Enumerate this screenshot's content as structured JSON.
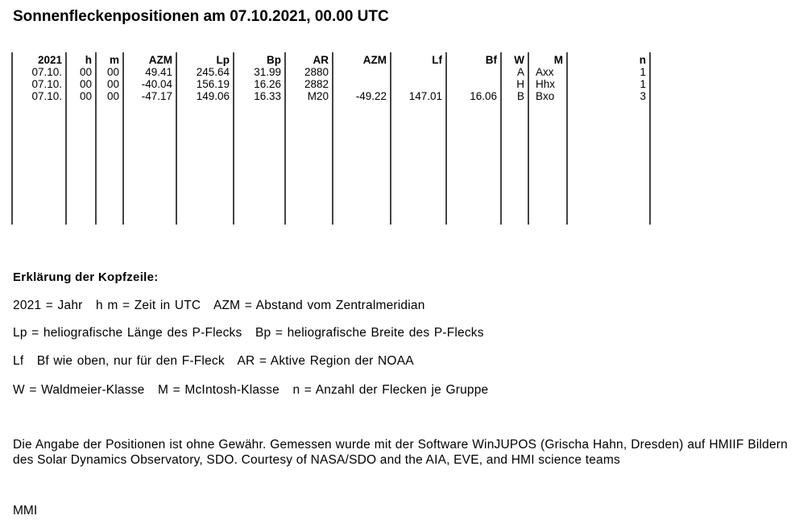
{
  "title": "Sonnenfleckenpositionen am 07.10.2021, 00.00 UTC",
  "table": {
    "headers": [
      "2021",
      "h",
      "m",
      "AZM",
      "Lp",
      "Bp",
      "AR",
      "AZM",
      "Lf",
      "Bf",
      "W",
      "M",
      "n"
    ],
    "rows": [
      [
        "07.10.",
        "00",
        "00",
        "49.41",
        "245.64",
        "31.99",
        "2880",
        "",
        "",
        "",
        "A",
        "Axx",
        "1"
      ],
      [
        "07.10.",
        "00",
        "00",
        "-40.04",
        "156.19",
        "16.26",
        "2882",
        "",
        "",
        "",
        "H",
        "Hhx",
        "1"
      ],
      [
        "07.10.",
        "00",
        "00",
        "-47.17",
        "149.06",
        "16.33",
        "M20",
        "-49.22",
        "147.01",
        "16.06",
        "B",
        "Bxo",
        "3"
      ]
    ]
  },
  "explanation": {
    "heading": "Erklärung der Kopfzeile:",
    "lines": [
      "2021 = Jahr   h m = Zeit in UTC   AZM = Abstand vom Zentralmeridian",
      "Lp = heliografische Länge des P-Flecks   Bp = heliografische Breite des P-Flecks",
      "Lf   Bf wie oben, nur für den F-Fleck   AR = Aktive Region der NOAA",
      "W = Waldmeier-Klasse   M = McIntosh-Klasse   n = Anzahl der Flecken je Gruppe"
    ]
  },
  "disclaimer": "Die Angabe der Positionen ist ohne Gewähr. Gemessen wurde mit der Software WinJUPOS (Grischa Hahn, Dresden) auf HMIIF Bildern des Solar Dynamics Observatory, SDO. Courtesy of NASA/SDO and the AIA, EVE, and HMI science teams",
  "signature": "MMI"
}
